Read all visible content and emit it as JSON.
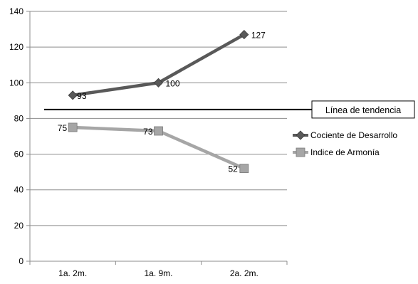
{
  "chart_data": {
    "type": "line",
    "categories": [
      "1a. 2m.",
      "1a. 9m.",
      "2a. 2m."
    ],
    "ylim": [
      0,
      140
    ],
    "yticks": [
      0,
      20,
      40,
      60,
      80,
      100,
      120,
      140
    ],
    "grid": true,
    "legend_position": "right",
    "series": [
      {
        "name": "Cociente de Desarrollo",
        "values": [
          93,
          100,
          127
        ],
        "color": "#595959",
        "marker": "diamond",
        "labels": [
          "93",
          "100",
          "127"
        ]
      },
      {
        "name": "Indice de Armonía",
        "values": [
          75,
          73,
          52
        ],
        "color": "#a6a6a6",
        "marker": "square",
        "labels": [
          "75",
          "73",
          "52"
        ]
      }
    ],
    "reference_line": {
      "value": 85,
      "label": "Línea de tendencia",
      "color": "#000000"
    }
  }
}
